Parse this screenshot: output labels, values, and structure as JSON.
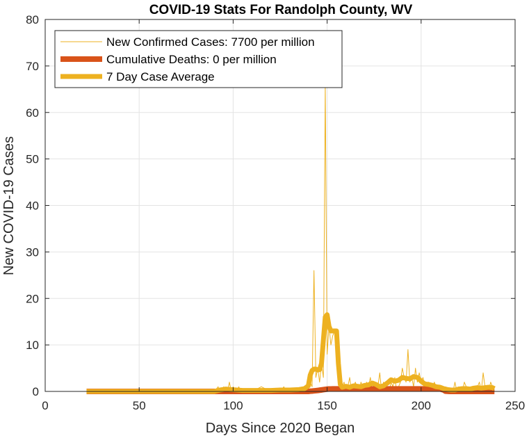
{
  "chart_data": {
    "type": "line",
    "title": "COVID-19 Stats For Randolph County, WV",
    "xlabel": "Days Since 2020 Began",
    "ylabel": "New COVID-19 Cases",
    "xlim": [
      0,
      250
    ],
    "ylim": [
      0,
      80
    ],
    "xticks": [
      0,
      50,
      100,
      150,
      200,
      250
    ],
    "yticks": [
      0,
      10,
      20,
      30,
      40,
      50,
      60,
      70,
      80
    ],
    "grid": true,
    "legend_position": "top-left",
    "series": [
      {
        "name": "New Confirmed Cases: 7700 per million",
        "color": "#EDB120",
        "style": "thin",
        "x": [
          22,
          90,
          92,
          93,
          94,
          95,
          96,
          97,
          98,
          99,
          100,
          101,
          102,
          103,
          104,
          105,
          110,
          115,
          120,
          125,
          127,
          128,
          130,
          135,
          138,
          140,
          141,
          142,
          143,
          144,
          145,
          146,
          147,
          148,
          149,
          150,
          151,
          152,
          153,
          154,
          155,
          156,
          157,
          158,
          159,
          160,
          161,
          162,
          163,
          164,
          165,
          166,
          167,
          168,
          169,
          170,
          171,
          172,
          173,
          174,
          175,
          176,
          177,
          178,
          179,
          180,
          181,
          182,
          183,
          184,
          185,
          186,
          187,
          188,
          189,
          190,
          191,
          192,
          193,
          194,
          195,
          196,
          197,
          198,
          199,
          200,
          201,
          202,
          203,
          204,
          205,
          206,
          207,
          208,
          209,
          210,
          211,
          212,
          213,
          214,
          215,
          216,
          217,
          218,
          219,
          220,
          221,
          222,
          223,
          224,
          225,
          226,
          227,
          228,
          229,
          230,
          231,
          232,
          233,
          234,
          235,
          236,
          237,
          238,
          239
        ],
        "values": [
          0,
          0,
          1,
          0,
          0,
          1,
          0,
          0,
          2,
          0,
          1,
          0,
          0,
          1,
          0,
          0,
          0,
          1,
          0,
          0,
          1,
          0,
          0,
          0,
          0,
          1,
          2,
          1,
          26,
          3,
          5,
          2,
          6,
          3,
          66,
          8,
          14,
          10,
          12,
          13,
          11,
          2,
          0,
          1,
          2,
          0,
          1,
          3,
          0,
          1,
          2,
          1,
          0,
          2,
          1,
          0,
          2,
          1,
          3,
          0,
          2,
          1,
          1,
          4,
          0,
          2,
          1,
          1,
          0,
          2,
          1,
          3,
          0,
          1,
          2,
          5,
          3,
          2,
          9,
          2,
          3,
          1,
          5,
          2,
          4,
          2,
          3,
          1,
          1,
          2,
          1,
          0,
          2,
          1,
          0,
          0,
          0,
          0,
          1,
          0,
          0,
          0,
          0,
          2,
          0,
          1,
          0,
          0,
          2,
          1,
          0,
          0,
          0,
          1,
          0,
          1,
          2,
          0,
          4,
          1,
          0,
          0,
          2,
          1,
          0
        ]
      },
      {
        "name": "Cumulative Deaths: 0 per million",
        "color": "#D95319",
        "style": "thick",
        "x": [
          22,
          140,
          141,
          142,
          143,
          144,
          145,
          146,
          147,
          148,
          149,
          150,
          151,
          152,
          153,
          154,
          155,
          156,
          157,
          158,
          160,
          165,
          170,
          175,
          180,
          185,
          190,
          195,
          200,
          205,
          210,
          212,
          213,
          215,
          220,
          225,
          230,
          235,
          239
        ],
        "values": [
          0,
          0,
          0.05,
          0.08,
          0.12,
          0.16,
          0.2,
          0.26,
          0.32,
          0.38,
          0.44,
          0.5,
          0.52,
          0.53,
          0.54,
          0.55,
          0.55,
          0.55,
          0.55,
          0.55,
          0.55,
          0.55,
          0.55,
          0.55,
          0.55,
          0.55,
          0.55,
          0.55,
          0.55,
          0.55,
          0.55,
          0.3,
          0.05,
          0,
          0,
          0,
          0,
          0,
          0
        ]
      },
      {
        "name": "7 Day Case Average",
        "color": "#EDB120",
        "style": "thicker",
        "x": [
          22,
          90,
          93,
          96,
          99,
          102,
          105,
          110,
          115,
          120,
          125,
          130,
          135,
          138,
          140,
          141,
          142,
          143,
          144,
          145,
          146,
          147,
          148,
          149,
          150,
          151,
          152,
          153,
          154,
          155,
          156,
          157,
          158,
          160,
          162,
          164,
          166,
          168,
          170,
          172,
          174,
          176,
          178,
          180,
          182,
          184,
          186,
          188,
          190,
          192,
          194,
          196,
          198,
          200,
          202,
          204,
          206,
          208,
          210,
          212,
          214,
          216,
          218,
          220,
          222,
          224,
          226,
          228,
          230,
          232,
          234,
          236,
          238,
          239
        ],
        "values": [
          0,
          0,
          0.3,
          0.5,
          0.4,
          0.3,
          0.2,
          0.2,
          0.2,
          0.2,
          0.3,
          0.3,
          0.4,
          0.6,
          1.2,
          3.5,
          4.5,
          4.8,
          4.8,
          4.6,
          4.7,
          6,
          11,
          16,
          16.5,
          14,
          13,
          13,
          13,
          13,
          6,
          1.5,
          0.9,
          1.1,
          0.9,
          1.2,
          1.1,
          1,
          1.3,
          1.4,
          1.8,
          1.5,
          1,
          1.2,
          1.8,
          2.5,
          2.2,
          2.4,
          3,
          2.8,
          2.7,
          3.2,
          3,
          2.2,
          1.6,
          1.5,
          1.3,
          1,
          0.9,
          0.6,
          0.4,
          0.3,
          0.3,
          0.5,
          0.6,
          0.6,
          0.5,
          0.7,
          0.8,
          0.7,
          0.8,
          0.9,
          0.8,
          0.6
        ]
      }
    ]
  }
}
